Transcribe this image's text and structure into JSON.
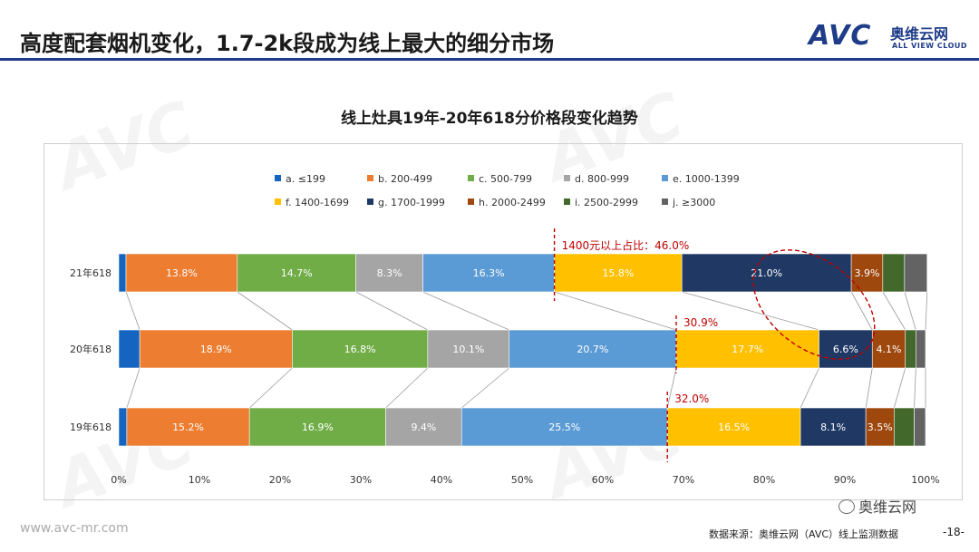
{
  "slide": {
    "title": "高度配套烟机变化，1.7-2k段成为线上最大的细分市场",
    "logo_text": "AVC",
    "logo_cn": "奥维云网",
    "logo_en": "ALL VIEW CLOUD",
    "footer_url": "www.avc-mr.com",
    "footer_source": "数据来源：奥维云网（AVC）线上监测数据",
    "page_number": "-18-",
    "wechat_label": "奥维云网",
    "brand_color": "#1f3c88"
  },
  "chart_data": {
    "type": "stacked-bar-horizontal-100",
    "title": "线上灶具19年-20年618分价格段变化趋势",
    "categories": [
      "21年618",
      "20年618",
      "19年618"
    ],
    "xlim": [
      0,
      100
    ],
    "xticks": [
      "0%",
      "10%",
      "20%",
      "30%",
      "40%",
      "50%",
      "60%",
      "70%",
      "80%",
      "90%",
      "100%"
    ],
    "legend_position": "top",
    "grid": false,
    "series": [
      {
        "name": "a. ≤199",
        "color": "#1565c0",
        "values": [
          0.9,
          2.6,
          1.0
        ],
        "labels": [
          "",
          "",
          ""
        ]
      },
      {
        "name": "b. 200-499",
        "color": "#ed7d31",
        "values": [
          13.8,
          18.9,
          15.2
        ],
        "labels": [
          "13.8%",
          "18.9%",
          "15.2%"
        ]
      },
      {
        "name": "c. 500-799",
        "color": "#70ad47",
        "values": [
          14.7,
          16.8,
          16.9
        ],
        "labels": [
          "14.7%",
          "16.8%",
          "16.9%"
        ]
      },
      {
        "name": "d. 800-999",
        "color": "#a5a5a5",
        "values": [
          8.3,
          10.1,
          9.4
        ],
        "labels": [
          "8.3%",
          "10.1%",
          "9.4%"
        ]
      },
      {
        "name": "e. 1000-1399",
        "color": "#5b9bd5",
        "values": [
          16.3,
          20.7,
          25.5
        ],
        "labels": [
          "16.3%",
          "20.7%",
          "25.5%"
        ]
      },
      {
        "name": "f. 1400-1699",
        "color": "#ffc000",
        "values": [
          15.8,
          17.7,
          16.5
        ],
        "labels": [
          "15.8%",
          "17.7%",
          "16.5%"
        ]
      },
      {
        "name": "g. 1700-1999",
        "color": "#1f3864",
        "values": [
          21.0,
          6.6,
          8.1
        ],
        "labels": [
          "21.0%",
          "6.6%",
          "8.1%"
        ]
      },
      {
        "name": "h. 2000-2499",
        "color": "#9e480e",
        "values": [
          3.9,
          4.1,
          3.5
        ],
        "labels": [
          "3.9%",
          "4.1%",
          "3.5%"
        ]
      },
      {
        "name": "i. 2500-2999",
        "color": "#43682b",
        "values": [
          2.7,
          1.3,
          2.5
        ],
        "labels": [
          "",
          "",
          ""
        ]
      },
      {
        "name": "j. ≥3000",
        "color": "#636363",
        "values": [
          2.8,
          1.2,
          1.4
        ],
        "labels": [
          "",
          "",
          ""
        ]
      }
    ],
    "annotations": [
      {
        "text": "1400元以上占比：46.0%",
        "row": 0,
        "share_from": 54.0
      },
      {
        "text": "30.9%",
        "row": 1,
        "share_from": 69.1
      },
      {
        "text": "32.0%",
        "row": 2,
        "share_from": 68.0
      }
    ],
    "annotation_color": "#c00000"
  }
}
